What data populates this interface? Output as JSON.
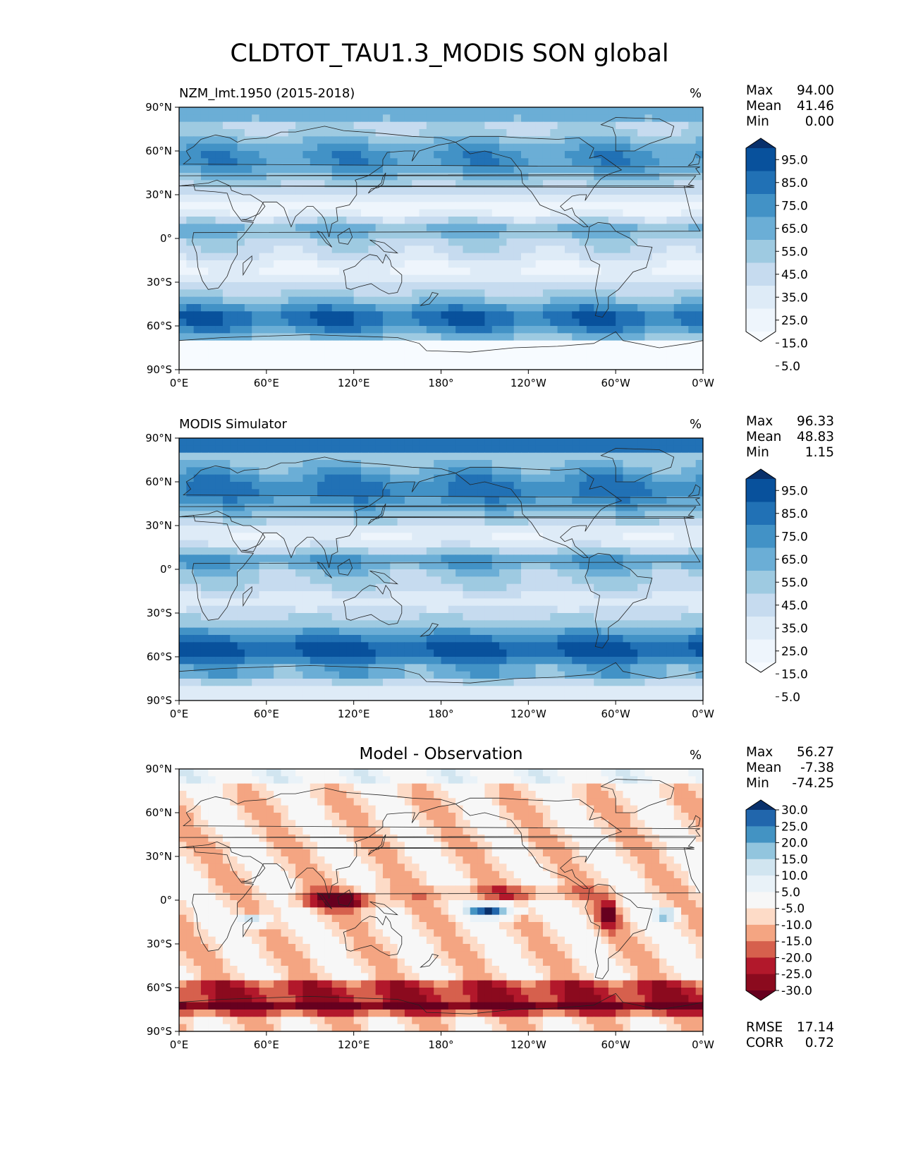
{
  "title": "CLDTOT_TAU1.3_MODIS SON global",
  "chart_data": [
    {
      "type": "heatmap",
      "title": "NZM_lmt.1950 (2015-2018)",
      "units": "%",
      "stats": [
        {
          "label": "Max",
          "value": "94.00"
        },
        {
          "label": "Mean",
          "value": "41.46"
        },
        {
          "label": "Min",
          "value": "0.00"
        }
      ],
      "colorbar": {
        "labels": [
          "95.0",
          "85.0",
          "75.0",
          "65.0",
          "55.0",
          "45.0",
          "35.0",
          "25.0",
          "15.0",
          "5.0"
        ],
        "colors": [
          "#08306b",
          "#08519c",
          "#2171b5",
          "#4292c6",
          "#6baed6",
          "#9ecae1",
          "#c6dbef",
          "#deebf7",
          "#eef5fc",
          "#f7fbff"
        ],
        "extend": "both"
      },
      "x_ticks": [
        "0°E",
        "60°E",
        "120°E",
        "180°",
        "120°W",
        "60°W",
        "0°W"
      ],
      "y_ticks": [
        "90°N",
        "60°N",
        "30°N",
        "0°",
        "30°S",
        "60°S",
        "90°S"
      ],
      "xlim": [
        0,
        360
      ],
      "ylim": [
        -90,
        90
      ]
    },
    {
      "type": "heatmap",
      "title": "MODIS Simulator",
      "units": "%",
      "stats": [
        {
          "label": "Max",
          "value": "96.33"
        },
        {
          "label": "Mean",
          "value": "48.83"
        },
        {
          "label": "Min",
          "value": "1.15"
        }
      ],
      "colorbar": {
        "labels": [
          "95.0",
          "85.0",
          "75.0",
          "65.0",
          "55.0",
          "45.0",
          "35.0",
          "25.0",
          "15.0",
          "5.0"
        ],
        "colors": [
          "#08306b",
          "#08519c",
          "#2171b5",
          "#4292c6",
          "#6baed6",
          "#9ecae1",
          "#c6dbef",
          "#deebf7",
          "#eef5fc",
          "#f7fbff"
        ],
        "extend": "both"
      },
      "x_ticks": [
        "0°E",
        "60°E",
        "120°E",
        "180°",
        "120°W",
        "60°W",
        "0°W"
      ],
      "y_ticks": [
        "90°N",
        "60°N",
        "30°N",
        "0°",
        "30°S",
        "60°S",
        "90°S"
      ],
      "xlim": [
        0,
        360
      ],
      "ylim": [
        -90,
        90
      ]
    },
    {
      "type": "heatmap",
      "title": "Model - Observation",
      "units": "%",
      "stats": [
        {
          "label": "Max",
          "value": "56.27"
        },
        {
          "label": "Mean",
          "value": "-7.38"
        },
        {
          "label": "Min",
          "value": "-74.25"
        }
      ],
      "extra_stats": [
        {
          "label": "RMSE",
          "value": "17.14"
        },
        {
          "label": "CORR",
          "value": "0.72"
        }
      ],
      "colorbar": {
        "labels": [
          "30.0",
          "25.0",
          "20.0",
          "15.0",
          "10.0",
          "5.0",
          "-5.0",
          "-10.0",
          "-15.0",
          "-20.0",
          "-25.0",
          "-30.0"
        ],
        "colors": [
          "#08306b",
          "#2166ac",
          "#4393c3",
          "#92c5de",
          "#d1e5f0",
          "#e9f2f8",
          "#f7f7f7",
          "#fddbc7",
          "#f4a582",
          "#d6604d",
          "#b2182b",
          "#8b0a1e",
          "#67001f"
        ],
        "extend": "both"
      },
      "x_ticks": [
        "0°E",
        "60°E",
        "120°E",
        "180°",
        "120°W",
        "60°W",
        "0°W"
      ],
      "y_ticks": [
        "90°N",
        "60°N",
        "30°N",
        "0°",
        "30°S",
        "60°S",
        "90°S"
      ],
      "xlim": [
        0,
        360
      ],
      "ylim": [
        -90,
        90
      ]
    }
  ]
}
